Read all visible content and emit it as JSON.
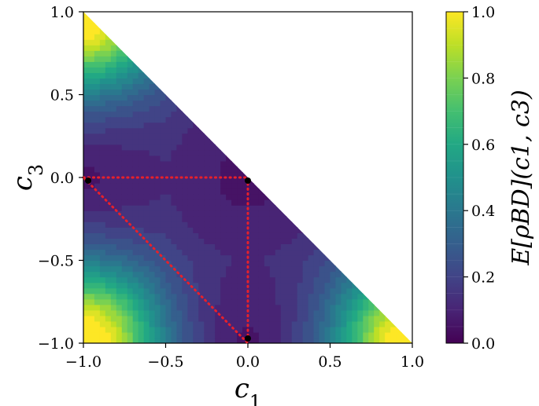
{
  "chart_data": {
    "type": "heatmap",
    "title": "",
    "xlabel": "c1",
    "ylabel": "c3",
    "xlim": [
      -1.0,
      1.0
    ],
    "ylim": [
      -1.0,
      1.0
    ],
    "x_ticks": [
      "−1.0",
      "−0.5",
      "0.0",
      "0.5",
      "1.0"
    ],
    "y_ticks": [
      "1.0",
      "0.5",
      "0.0",
      "−0.5",
      "−1.0"
    ],
    "x_tick_values": [
      -1.0,
      -0.5,
      0.0,
      0.5,
      1.0
    ],
    "y_tick_values": [
      1.0,
      0.5,
      0.0,
      -0.5,
      -1.0
    ],
    "domain": "triangle c1 + c3 ≤ 0 within [-1,1]²",
    "colorbar": {
      "label": "E[ρBD](c1, c3)",
      "colormap": "viridis",
      "range": [
        0.0,
        1.0
      ],
      "ticks": [
        "0.0",
        "0.2",
        "0.4",
        "0.6",
        "0.8",
        "1.0"
      ],
      "tick_values": [
        0.0,
        0.2,
        0.4,
        0.6,
        0.8,
        1.0
      ]
    },
    "grid": false,
    "overlay_triangle": {
      "color": "#e8202a",
      "style": "dotted",
      "vertices": [
        [
          -1.0,
          0.0
        ],
        [
          0.0,
          0.0
        ],
        [
          0.0,
          -1.0
        ]
      ]
    },
    "markers": [
      {
        "x": -1.0,
        "y": 0.0,
        "color": "#000000"
      },
      {
        "x": 0.0,
        "y": 0.0,
        "color": "#000000"
      },
      {
        "x": 0.0,
        "y": -1.0,
        "color": "#000000"
      }
    ]
  }
}
